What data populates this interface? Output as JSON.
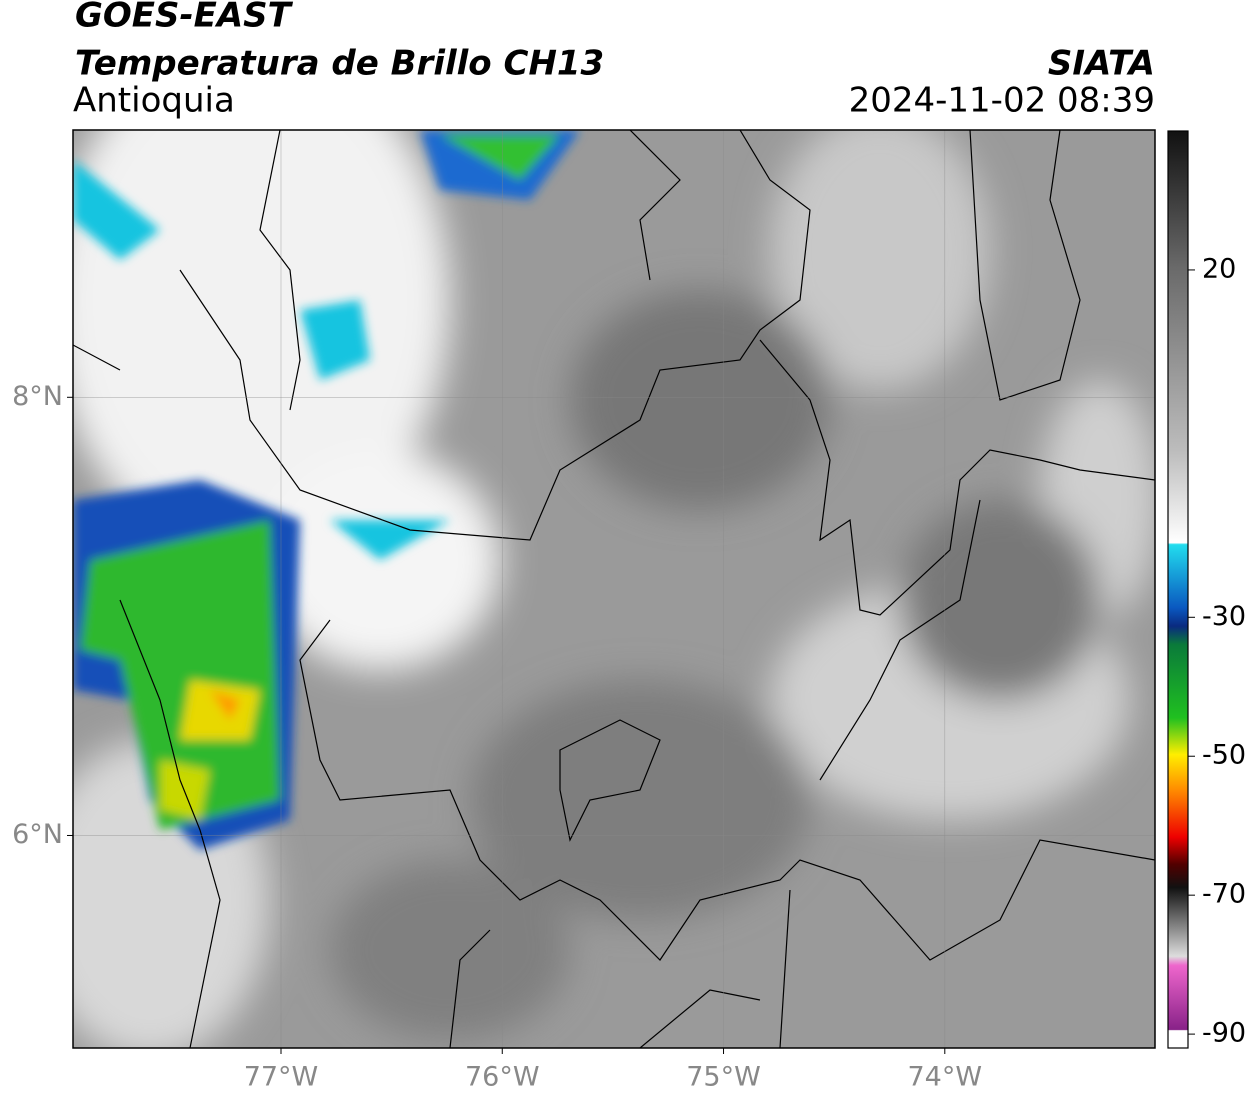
{
  "header": {
    "satellite": "GOES-EAST",
    "product": "Temperatura de Brillo CH13",
    "region": "Antioquia",
    "source": "SIATA",
    "datetime": "2024-11-02 08:39"
  },
  "map": {
    "lonlim": [
      -77.94,
      -73.05
    ],
    "latlim": [
      5.03,
      9.22
    ],
    "lonticks": [
      {
        "value": -77,
        "label": "77°W"
      },
      {
        "value": -76,
        "label": "76°W"
      },
      {
        "value": -75,
        "label": "75°W"
      },
      {
        "value": -74,
        "label": "74°W"
      }
    ],
    "latticks": [
      {
        "value": 8,
        "label": "8°N"
      },
      {
        "value": 6,
        "label": "6°N"
      }
    ]
  },
  "colorbar": {
    "range": [
      -92,
      40
    ],
    "ticks": [
      20,
      -30,
      -50,
      -70,
      -90
    ]
  }
}
